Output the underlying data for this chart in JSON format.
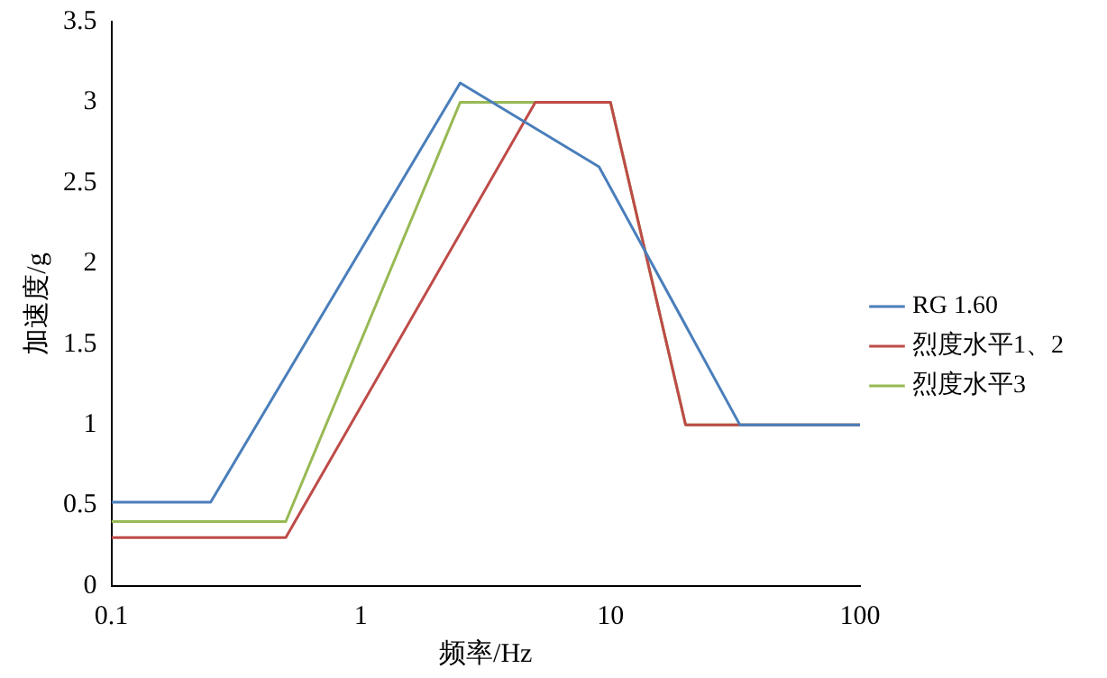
{
  "chart_data": {
    "type": "line",
    "xlabel": "频率/Hz",
    "ylabel": "加速度/g",
    "log": "x",
    "xlim": [
      0.1,
      100
    ],
    "xticks": [
      0.1,
      1,
      10,
      100
    ],
    "ylim": [
      0,
      3.5
    ],
    "yticks": [
      0,
      0.5,
      1,
      1.5,
      2,
      2.5,
      3,
      3.5
    ],
    "grid": false,
    "legend": "right",
    "marker": "none",
    "line_style": "solid",
    "series": [
      {
        "name": "RG 1.60",
        "color": "#4a7ebb",
        "x": [
          0.1,
          0.25,
          2.5,
          9,
          33,
          100
        ],
        "values": [
          0.52,
          0.52,
          3.12,
          2.6,
          1,
          1
        ]
      },
      {
        "name": "烈度水平1、2",
        "color": "#be4b48",
        "x": [
          0.1,
          0.5,
          5,
          10,
          20,
          100
        ],
        "values": [
          0.3,
          0.3,
          3,
          3,
          1,
          1
        ]
      },
      {
        "name": "烈度水平3",
        "color": "#98b954",
        "x": [
          0.1,
          0.5,
          2.5,
          10,
          20,
          100
        ],
        "values": [
          0.4,
          0.4,
          3,
          3,
          1,
          1
        ]
      }
    ]
  }
}
